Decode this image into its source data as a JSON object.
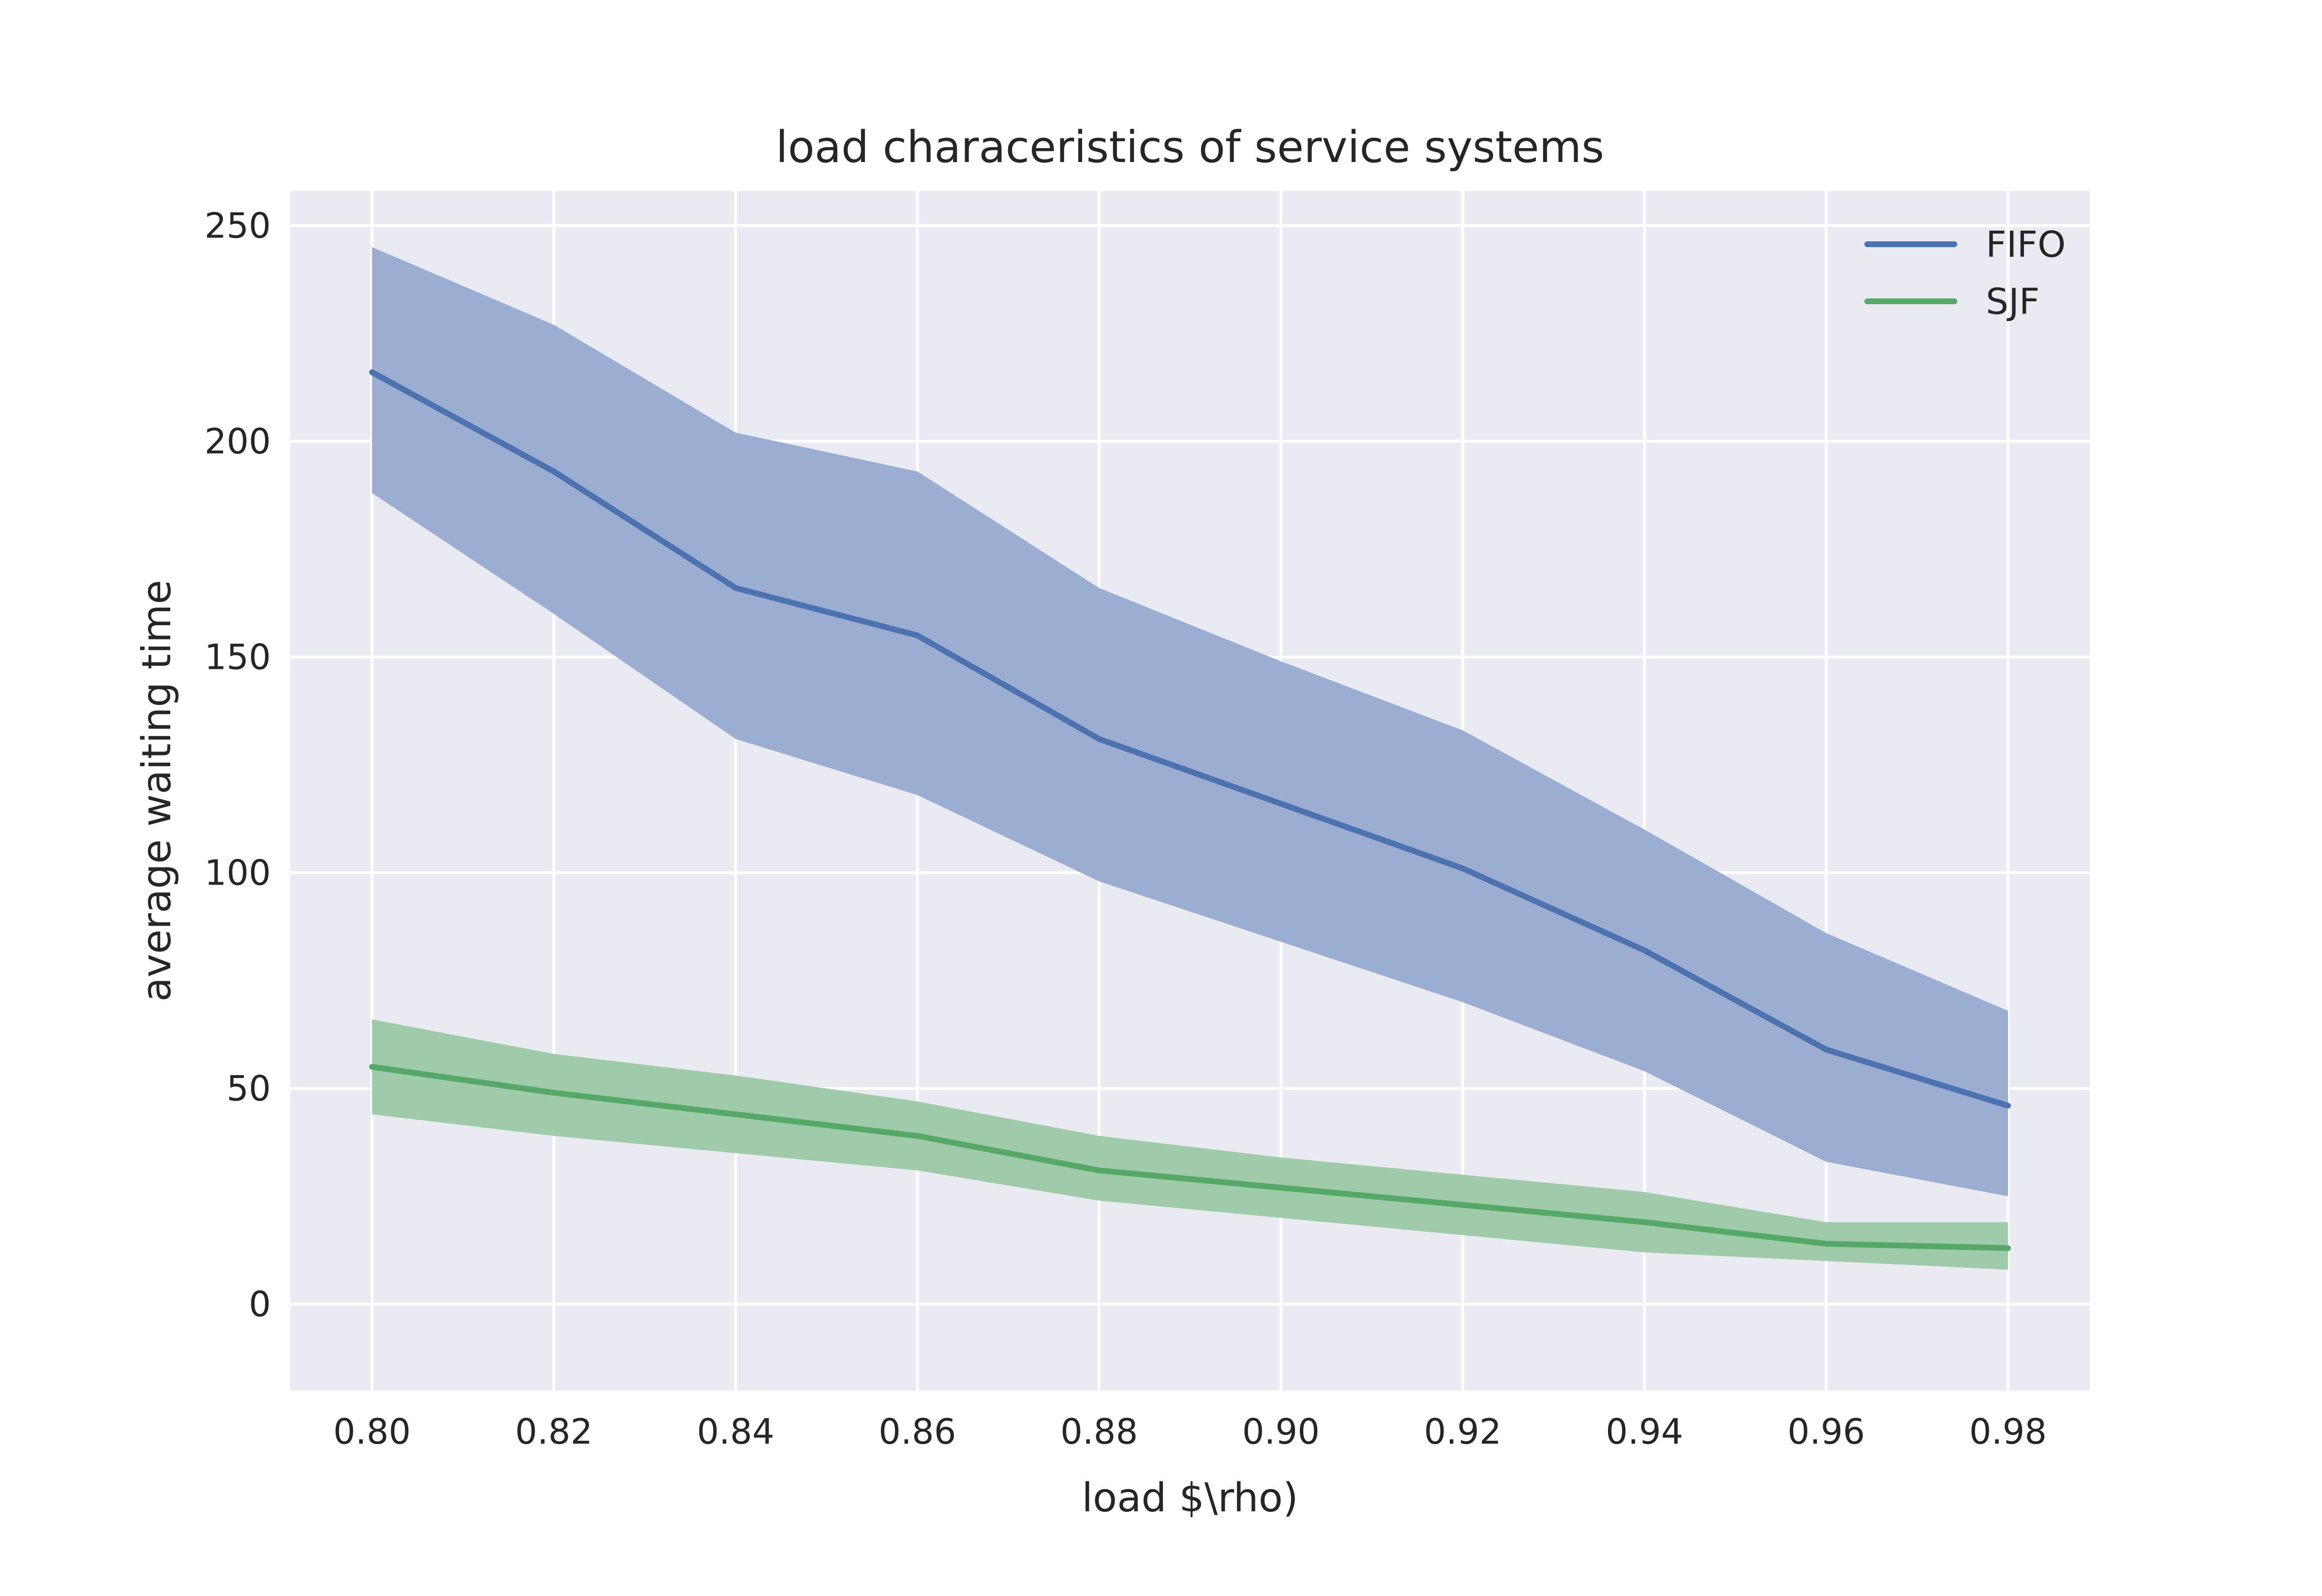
{
  "chart_data": {
    "type": "line",
    "title": "load characeristics of service systems",
    "xlabel": "load $\\rho)",
    "ylabel": "average waiting time",
    "x": [
      0.8,
      0.82,
      0.84,
      0.86,
      0.88,
      0.9,
      0.92,
      0.94,
      0.96,
      0.98
    ],
    "xlim": [
      0.791,
      0.989
    ],
    "ylim": [
      -20,
      258
    ],
    "xticks": [
      "0.80",
      "0.82",
      "0.84",
      "0.86",
      "0.88",
      "0.90",
      "0.92",
      "0.94",
      "0.96",
      "0.98"
    ],
    "yticks": [
      "0",
      "50",
      "100",
      "150",
      "200",
      "250"
    ],
    "grid": true,
    "legend_position": "top-right",
    "background": "#eaeaf2",
    "series": [
      {
        "name": "FIFO",
        "color": "#4c72b0",
        "band_color": "#9badd1",
        "values": [
          216,
          193,
          166,
          155,
          131,
          116,
          101,
          82,
          59,
          46
        ],
        "upper": [
          245,
          227,
          202,
          193,
          166,
          149,
          133,
          110,
          86,
          68
        ],
        "lower": [
          188,
          160,
          131,
          118,
          98,
          84,
          70,
          54,
          33,
          25
        ]
      },
      {
        "name": "SJF",
        "color": "#55a868",
        "band_color": "#9fcbaa",
        "values": [
          55,
          49,
          44,
          39,
          31,
          27,
          23,
          19,
          14,
          13
        ],
        "upper": [
          66,
          58,
          53,
          47,
          39,
          34,
          30,
          26,
          19,
          19
        ],
        "lower": [
          44,
          39,
          35,
          31,
          24,
          20,
          16,
          12,
          10,
          8
        ]
      }
    ]
  }
}
